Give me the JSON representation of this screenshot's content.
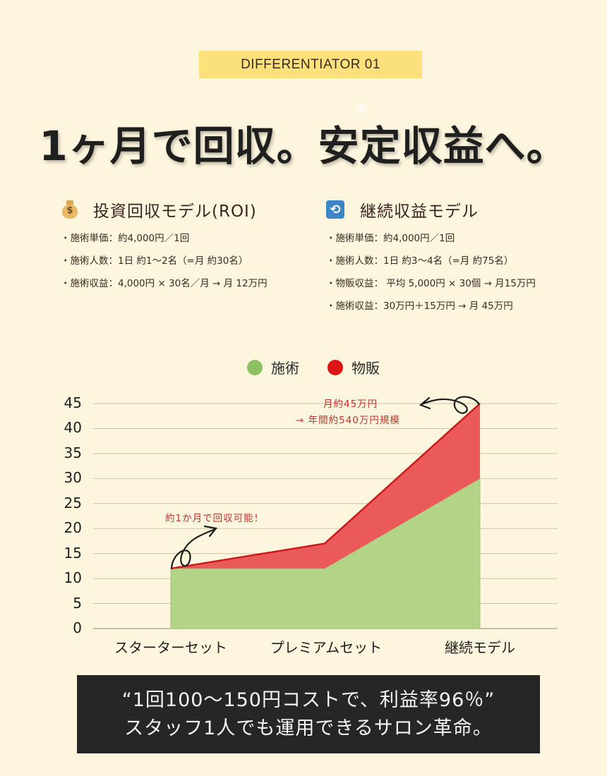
{
  "badge": {
    "label": "DIFFERENTIATOR 01"
  },
  "headline": "1ヶ月で回収。安定収益へ。",
  "sections": [
    {
      "icon": "money-bag-icon",
      "title": "投資回収モデル(ROI)",
      "items": [
        "施術単価：約4,000円／1回",
        "施術人数：1日 約1～2名（=月 約30名）",
        "施術収益：4,000円 × 30名／月 → 月 12万円"
      ]
    },
    {
      "icon": "repeat-icon",
      "title": "継続収益モデル",
      "items": [
        "施術単価：約4,000円／1回",
        "施術人数：1日 約3～4名（=月 約75名）",
        "物販収益： 平均 5,000円 × 30個 → 月15万円",
        "施術収益：30万円＋15万円 → 月 45万円"
      ]
    }
  ],
  "colors": {
    "background": "#fdf5dd",
    "badge": "#fbe07c",
    "treatment": "#b3d387",
    "treatment_legend": "#8cc060",
    "retail": "#ea5a5a",
    "retail_line": "#cc1a1a",
    "retail_legend": "#dd1515",
    "annotation": "#c9302c",
    "quote_bg": "#262626"
  },
  "chart_data": {
    "type": "area",
    "stacked": true,
    "categories": [
      "スターターセット",
      "プレミアムセット",
      "継続モデル"
    ],
    "series": [
      {
        "name": "施術",
        "values": [
          12,
          12,
          30
        ]
      },
      {
        "name": "物販",
        "values": [
          0,
          5,
          15
        ]
      }
    ],
    "totals": [
      12,
      17,
      45
    ],
    "title": "",
    "xlabel": "",
    "ylabel": "",
    "ylim": [
      0,
      45
    ],
    "yticks": [
      0,
      5,
      10,
      15,
      20,
      25,
      30,
      35,
      40,
      45
    ],
    "grid": true,
    "legend_position": "top",
    "annotations": [
      {
        "text": "約1か月で回収可能！",
        "target": "スターターセット"
      },
      {
        "text": "月約45万円",
        "target": "継続モデル"
      },
      {
        "text": "→  年間約540万円規模",
        "target": "継続モデル"
      }
    ]
  },
  "quote": {
    "line1": "“1回100～150円コストで、利益率96％”",
    "line2": "スタッフ1人でも運用できるサロン革命。"
  }
}
